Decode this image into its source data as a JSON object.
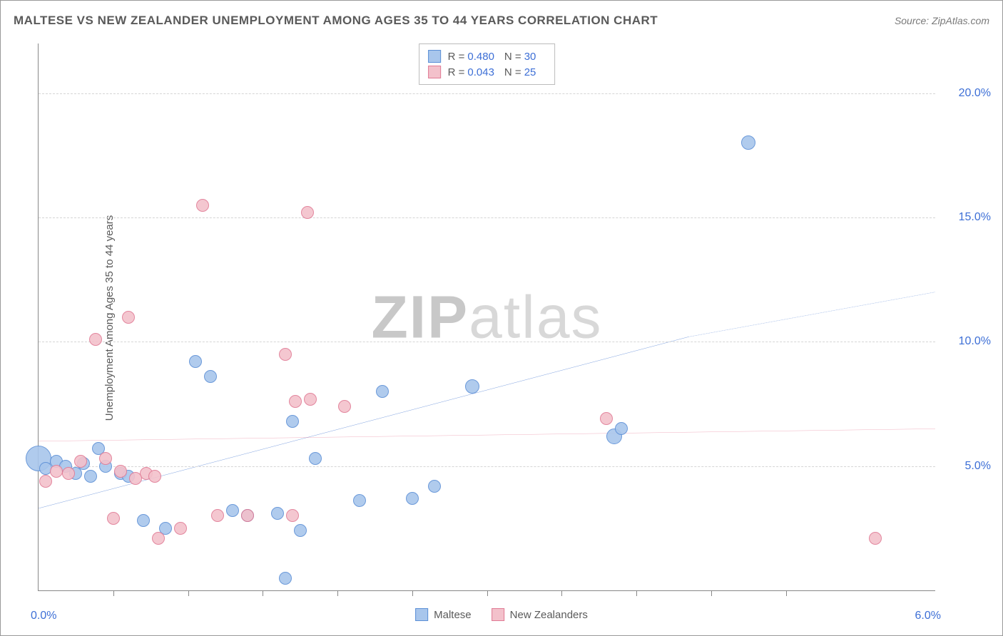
{
  "title": "MALTESE VS NEW ZEALANDER UNEMPLOYMENT AMONG AGES 35 TO 44 YEARS CORRELATION CHART",
  "source": "Source: ZipAtlas.com",
  "ylabel": "Unemployment Among Ages 35 to 44 years",
  "watermark_a": "ZIP",
  "watermark_b": "atlas",
  "chart": {
    "type": "scatter",
    "xlim": [
      0.0,
      6.0
    ],
    "ylim": [
      0.0,
      22.0
    ],
    "xlabel_origin": "0.0%",
    "xlabel_end": "6.0%",
    "ytick_values": [
      5.0,
      10.0,
      15.0,
      20.0
    ],
    "ytick_labels": [
      "5.0%",
      "10.0%",
      "15.0%",
      "20.0%"
    ],
    "xtick_values": [
      0.5,
      1.0,
      1.5,
      2.0,
      2.5,
      3.0,
      3.5,
      4.0,
      4.5,
      5.0
    ],
    "grid_color": "#d5d5d5",
    "background_color": "#ffffff",
    "axis_color": "#888888",
    "tick_label_color": "#3d6fd6",
    "tick_label_fontsize": 16,
    "point_radius": 9,
    "point_border_width": 1.5,
    "point_fill_opacity": 0.35,
    "series": [
      {
        "name": "Maltese",
        "color_fill": "#a8c6ec",
        "color_stroke": "#5b8fd6",
        "r_label": "R =",
        "r_value": "0.480",
        "n_label": "N =",
        "n_value": "30",
        "trend": {
          "x1": 0.0,
          "y1": 3.3,
          "x2": 4.35,
          "y2": 10.2,
          "x2_dash": 6.0,
          "y2_dash": 12.0,
          "stroke": "#2a63c9",
          "width": 2.5
        },
        "points": [
          {
            "x": 0.0,
            "y": 5.3,
            "r": 18
          },
          {
            "x": 0.05,
            "y": 4.9
          },
          {
            "x": 0.12,
            "y": 5.2
          },
          {
            "x": 0.18,
            "y": 5.0
          },
          {
            "x": 0.25,
            "y": 4.7
          },
          {
            "x": 0.3,
            "y": 5.1
          },
          {
            "x": 0.35,
            "y": 4.6
          },
          {
            "x": 0.4,
            "y": 5.7
          },
          {
            "x": 0.45,
            "y": 5.0
          },
          {
            "x": 0.55,
            "y": 4.7
          },
          {
            "x": 0.6,
            "y": 4.6
          },
          {
            "x": 0.7,
            "y": 2.8
          },
          {
            "x": 0.85,
            "y": 2.5
          },
          {
            "x": 1.05,
            "y": 9.2
          },
          {
            "x": 1.15,
            "y": 8.6
          },
          {
            "x": 1.3,
            "y": 3.2
          },
          {
            "x": 1.4,
            "y": 3.0
          },
          {
            "x": 1.6,
            "y": 3.1
          },
          {
            "x": 1.65,
            "y": 0.5
          },
          {
            "x": 1.7,
            "y": 6.8
          },
          {
            "x": 1.75,
            "y": 2.4
          },
          {
            "x": 1.85,
            "y": 5.3
          },
          {
            "x": 2.15,
            "y": 3.6
          },
          {
            "x": 2.3,
            "y": 8.0
          },
          {
            "x": 2.5,
            "y": 3.7
          },
          {
            "x": 2.65,
            "y": 4.2
          },
          {
            "x": 2.9,
            "y": 8.2,
            "r": 10
          },
          {
            "x": 3.85,
            "y": 6.2,
            "r": 11
          },
          {
            "x": 3.9,
            "y": 6.5
          },
          {
            "x": 4.75,
            "y": 18.0,
            "r": 10
          }
        ]
      },
      {
        "name": "New Zealanders",
        "color_fill": "#f3c1cb",
        "color_stroke": "#e07a94",
        "r_label": "R =",
        "r_value": "0.043",
        "n_label": "N =",
        "n_value": "25",
        "trend": {
          "x1": 0.0,
          "y1": 6.0,
          "x2": 6.0,
          "y2": 6.5,
          "stroke": "#e05a7d",
          "width": 2
        },
        "points": [
          {
            "x": 0.05,
            "y": 4.4
          },
          {
            "x": 0.12,
            "y": 4.8
          },
          {
            "x": 0.2,
            "y": 4.7
          },
          {
            "x": 0.28,
            "y": 5.2
          },
          {
            "x": 0.38,
            "y": 10.1
          },
          {
            "x": 0.45,
            "y": 5.3
          },
          {
            "x": 0.5,
            "y": 2.9
          },
          {
            "x": 0.55,
            "y": 4.8
          },
          {
            "x": 0.6,
            "y": 11.0
          },
          {
            "x": 0.72,
            "y": 4.7
          },
          {
            "x": 0.78,
            "y": 4.6
          },
          {
            "x": 0.8,
            "y": 2.1
          },
          {
            "x": 0.95,
            "y": 2.5
          },
          {
            "x": 1.1,
            "y": 15.5
          },
          {
            "x": 1.2,
            "y": 3.0
          },
          {
            "x": 1.4,
            "y": 3.0
          },
          {
            "x": 1.65,
            "y": 9.5
          },
          {
            "x": 1.7,
            "y": 3.0
          },
          {
            "x": 1.72,
            "y": 7.6
          },
          {
            "x": 1.8,
            "y": 15.2
          },
          {
            "x": 1.82,
            "y": 7.7
          },
          {
            "x": 2.05,
            "y": 7.4
          },
          {
            "x": 3.8,
            "y": 6.9
          },
          {
            "x": 5.6,
            "y": 2.1
          },
          {
            "x": 0.65,
            "y": 4.5
          }
        ]
      }
    ]
  },
  "legend_bottom": [
    {
      "label": "Maltese",
      "fill": "#a8c6ec",
      "stroke": "#5b8fd6"
    },
    {
      "label": "New Zealanders",
      "fill": "#f3c1cb",
      "stroke": "#e07a94"
    }
  ]
}
